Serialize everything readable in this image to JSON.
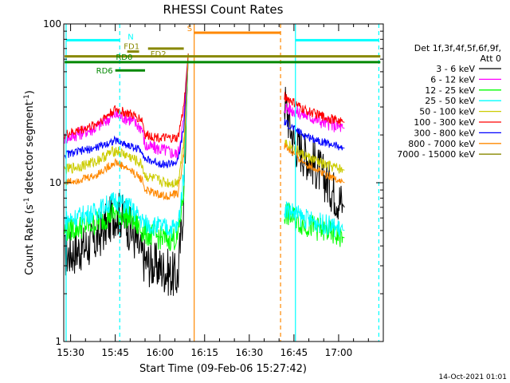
{
  "chart_data": {
    "type": "line",
    "title": "RHESSI Count Rates",
    "xlabel": "Start Time (09-Feb-06 15:27:42)",
    "ylabel_prefix": "Count Rate (s",
    "ylabel_sup": "-1",
    "ylabel_suffix": " detector segment",
    "ylabel_sup2": "-1",
    "ylabel_close": ")",
    "yscale": "log",
    "ylim": [
      1,
      100
    ],
    "xlim_min": [
      927.7,
      1035
    ],
    "x_ticks": [
      {
        "v": 930,
        "label": "15:30"
      },
      {
        "v": 945,
        "label": "15:45"
      },
      {
        "v": 960,
        "label": "16:00"
      },
      {
        "v": 975,
        "label": "16:15"
      },
      {
        "v": 990,
        "label": "16:30"
      },
      {
        "v": 1005,
        "label": "16:45"
      },
      {
        "v": 1020,
        "label": "17:00"
      }
    ],
    "y_ticks": [
      {
        "v": 1,
        "label": "1"
      },
      {
        "v": 10,
        "label": "10"
      },
      {
        "v": 100,
        "label": "100"
      }
    ],
    "legend_header": [
      "Det 1f,3f,4f,5f,6f,9f,",
      "Att 0"
    ],
    "timestamp": "14-Oct-2021 01:01",
    "gap": {
      "start": 970,
      "end": 1001.8
    },
    "series": [
      {
        "name": "3 - 6 keV",
        "color": "#000000",
        "knots": [
          [
            928,
            3.5
          ],
          [
            938,
            4.2
          ],
          [
            945,
            6.5
          ],
          [
            948,
            6
          ],
          [
            952,
            4.3
          ],
          [
            955,
            3.2
          ],
          [
            962,
            2.8
          ],
          [
            966,
            2.5
          ],
          [
            968,
            8
          ],
          [
            969.5,
            65
          ]
        ],
        "knots2": [
          [
            1001.8,
            33
          ],
          [
            1005,
            18
          ],
          [
            1012,
            13
          ],
          [
            1018,
            9
          ],
          [
            1022,
            7
          ]
        ],
        "noise": 0.35
      },
      {
        "name": "6 - 12 keV",
        "color": "#ff00ff",
        "knots": [
          [
            928,
            19
          ],
          [
            938,
            22
          ],
          [
            945,
            27
          ],
          [
            950,
            25
          ],
          [
            954,
            22
          ],
          [
            955,
            17
          ],
          [
            962,
            16
          ],
          [
            966,
            15
          ],
          [
            968,
            25
          ],
          [
            969.5,
            65
          ]
        ],
        "knots2": [
          [
            1001.8,
            30
          ],
          [
            1008,
            27
          ],
          [
            1015,
            24
          ],
          [
            1022,
            22
          ]
        ],
        "noise": 0.1
      },
      {
        "name": "12 - 25 keV",
        "color": "#00ff00",
        "knots": [
          [
            928,
            5
          ],
          [
            938,
            5.5
          ],
          [
            945,
            6.5
          ],
          [
            950,
            6
          ],
          [
            955,
            4.8
          ],
          [
            962,
            4.4
          ],
          [
            966,
            4.5
          ],
          [
            968,
            9
          ],
          [
            969.5,
            65
          ]
        ],
        "knots2": [
          [
            1001.8,
            6.5
          ],
          [
            1008,
            5.5
          ],
          [
            1015,
            5
          ],
          [
            1022,
            4.5
          ]
        ],
        "noise": 0.18
      },
      {
        "name": "25 - 50 keV",
        "color": "#00ffff",
        "knots": [
          [
            928,
            5.8
          ],
          [
            938,
            6.5
          ],
          [
            945,
            7.8
          ],
          [
            950,
            7
          ],
          [
            955,
            5.5
          ],
          [
            962,
            5.2
          ],
          [
            966,
            5.2
          ],
          [
            968,
            11
          ],
          [
            969.5,
            65
          ]
        ],
        "knots2": [
          [
            1001.8,
            7
          ],
          [
            1008,
            6
          ],
          [
            1015,
            5.5
          ],
          [
            1022,
            5
          ]
        ],
        "noise": 0.15
      },
      {
        "name": "50 - 100 keV",
        "color": "#cccc00",
        "knots": [
          [
            928,
            12
          ],
          [
            938,
            13.5
          ],
          [
            945,
            16
          ],
          [
            950,
            14.5
          ],
          [
            954,
            13
          ],
          [
            955,
            11
          ],
          [
            962,
            10
          ],
          [
            966,
            10
          ],
          [
            968,
            18
          ],
          [
            969.5,
            65
          ]
        ],
        "knots2": [
          [
            1001.8,
            18
          ],
          [
            1008,
            15
          ],
          [
            1015,
            13
          ],
          [
            1022,
            12
          ]
        ],
        "noise": 0.08
      },
      {
        "name": "100 - 300 keV",
        "color": "#ff0000",
        "knots": [
          [
            928,
            20
          ],
          [
            938,
            23
          ],
          [
            945,
            29
          ],
          [
            950,
            27
          ],
          [
            954,
            25
          ],
          [
            955,
            20
          ],
          [
            962,
            19
          ],
          [
            966,
            19
          ],
          [
            968,
            30
          ],
          [
            969.5,
            65
          ]
        ],
        "knots2": [
          [
            1001.8,
            35
          ],
          [
            1008,
            29
          ],
          [
            1015,
            26
          ],
          [
            1022,
            24
          ]
        ],
        "noise": 0.07
      },
      {
        "name": "300 - 800 keV",
        "color": "#0000ff",
        "knots": [
          [
            928,
            15
          ],
          [
            938,
            16.5
          ],
          [
            945,
            18.5
          ],
          [
            950,
            17
          ],
          [
            954,
            16
          ],
          [
            955,
            14
          ],
          [
            962,
            13
          ],
          [
            966,
            13.5
          ],
          [
            968,
            22
          ],
          [
            969.5,
            65
          ]
        ],
        "knots2": [
          [
            1001.8,
            24
          ],
          [
            1008,
            20
          ],
          [
            1015,
            18
          ],
          [
            1022,
            16.5
          ]
        ],
        "noise": 0.06
      },
      {
        "name": "800 - 7000 keV",
        "color": "#ff8800",
        "knots": [
          [
            928,
            10
          ],
          [
            938,
            11
          ],
          [
            945,
            13.5
          ],
          [
            950,
            12
          ],
          [
            954,
            10.5
          ],
          [
            955,
            9
          ],
          [
            962,
            8.2
          ],
          [
            966,
            8.5
          ],
          [
            968,
            15
          ],
          [
            969.5,
            65
          ]
        ],
        "knots2": [
          [
            1001.8,
            17
          ],
          [
            1008,
            13.5
          ],
          [
            1015,
            11.5
          ],
          [
            1022,
            10
          ]
        ],
        "noise": 0.06
      },
      {
        "name": "7000 - 15000 keV",
        "color": "#888800",
        "knots": [],
        "knots2": [],
        "noise": 0
      }
    ],
    "vlines": [
      {
        "name": "cyan-line-1",
        "v": 928.5,
        "color": "#00ffff",
        "dash": false
      },
      {
        "name": "cyan-line-2",
        "v": 946.5,
        "color": "#00ffff",
        "dash": true
      },
      {
        "name": "orange-line-1",
        "v": 971.5,
        "color": "#ff8800",
        "dash": false
      },
      {
        "name": "orange-line-2",
        "v": 1000.5,
        "color": "#ff8800",
        "dash": true
      },
      {
        "name": "cyan-line-3",
        "v": 1005.5,
        "color": "#00ffff",
        "dash": false
      },
      {
        "name": "cyan-line-4",
        "v": 1033.5,
        "color": "#00ffff",
        "dash": true
      }
    ],
    "flag_bars": [
      {
        "name": "N-bar-1",
        "x0": 928.5,
        "x1": 946.5,
        "y": 79,
        "color": "#00ffff",
        "label": "N",
        "labelpos": "end"
      },
      {
        "name": "N-bar-2",
        "x0": 1005.5,
        "x1": 1033.5,
        "y": 79,
        "color": "#00ffff",
        "label": "",
        "labelpos": "none"
      },
      {
        "name": "S-bar",
        "x0": 971.5,
        "x1": 1000.5,
        "y": 88,
        "color": "#ff8800",
        "label": "S",
        "labelpos": "start"
      },
      {
        "name": "FD1-bar",
        "x0": 949,
        "x1": 953,
        "y": 67,
        "color": "#888800",
        "label": "FD1",
        "labelpos": "above-mid"
      },
      {
        "name": "FD2-bar",
        "x0": 956,
        "x1": 968,
        "y": 70,
        "color": "#888800",
        "label": "FD2",
        "labelpos": "below-start"
      },
      {
        "name": "FD-long-bar",
        "x0": 928,
        "x1": 1034,
        "y": 62.5,
        "color": "#888800",
        "label": "",
        "labelpos": "none"
      },
      {
        "name": "RD0-bar",
        "x0": 928,
        "x1": 1034,
        "y": 57.5,
        "color": "#008800",
        "label": "RD0",
        "labelpos": "above-mid"
      },
      {
        "name": "RD6-bar",
        "x0": 945,
        "x1": 955,
        "y": 51,
        "color": "#008800",
        "label": "RD6",
        "labelpos": "left"
      }
    ]
  }
}
